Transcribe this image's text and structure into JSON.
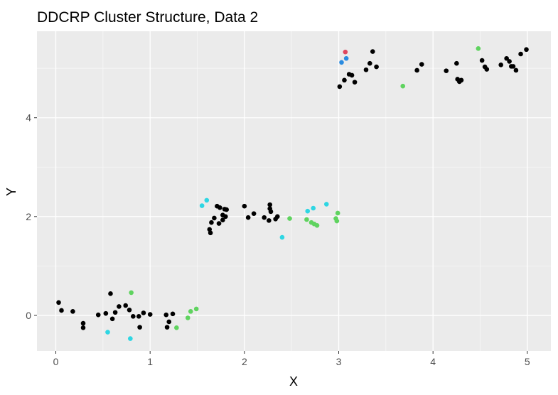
{
  "chart_data": {
    "type": "scatter",
    "title": "DDCRP Cluster Structure, Data 2",
    "xlabel": "X",
    "ylabel": "Y",
    "xlim": [
      -0.2,
      5.25
    ],
    "ylim": [
      -0.72,
      5.75
    ],
    "x_ticks": [
      0,
      1,
      2,
      3,
      4,
      5
    ],
    "y_ticks": [
      0,
      2,
      4
    ],
    "grid": true,
    "legend": "none",
    "panel_background": "#ebebeb",
    "cluster_colors": {
      "black": "#000000",
      "green": "#5fd35f",
      "cyan": "#2ed6e3",
      "blue": "#2a8be0",
      "red": "#e0475e"
    },
    "series": [
      {
        "color": "black",
        "points": [
          [
            0.03,
            0.26
          ],
          [
            0.06,
            0.1
          ],
          [
            0.18,
            0.08
          ],
          [
            0.29,
            -0.16
          ],
          [
            0.29,
            -0.25
          ],
          [
            0.45,
            0.01
          ],
          [
            0.53,
            0.04
          ],
          [
            0.58,
            0.44
          ],
          [
            0.6,
            -0.07
          ],
          [
            0.63,
            0.06
          ],
          [
            0.67,
            0.18
          ],
          [
            0.74,
            0.2
          ],
          [
            0.78,
            0.11
          ],
          [
            0.82,
            -0.02
          ],
          [
            0.88,
            -0.02
          ],
          [
            0.89,
            -0.24
          ],
          [
            0.93,
            0.05
          ],
          [
            1.0,
            0.02
          ],
          [
            1.17,
            0.01
          ],
          [
            1.18,
            -0.24
          ],
          [
            1.2,
            -0.13
          ],
          [
            1.24,
            0.03
          ],
          [
            1.63,
            1.74
          ],
          [
            1.64,
            1.67
          ],
          [
            1.65,
            1.88
          ],
          [
            1.68,
            1.97
          ],
          [
            1.71,
            2.21
          ],
          [
            1.73,
            1.86
          ],
          [
            1.74,
            2.18
          ],
          [
            1.77,
            1.93
          ],
          [
            1.77,
            2.03
          ],
          [
            1.79,
            2.15
          ],
          [
            1.8,
            2.0
          ],
          [
            1.81,
            2.14
          ],
          [
            2.0,
            2.21
          ],
          [
            2.04,
            1.98
          ],
          [
            2.1,
            2.06
          ],
          [
            2.21,
            1.98
          ],
          [
            2.26,
            1.92
          ],
          [
            2.27,
            2.24
          ],
          [
            2.27,
            2.16
          ],
          [
            2.28,
            2.1
          ],
          [
            2.33,
            1.95
          ],
          [
            2.35,
            2.0
          ],
          [
            3.01,
            4.63
          ],
          [
            3.06,
            4.76
          ],
          [
            3.11,
            4.88
          ],
          [
            3.14,
            4.86
          ],
          [
            3.17,
            4.72
          ],
          [
            3.29,
            4.97
          ],
          [
            3.33,
            5.1
          ],
          [
            3.36,
            5.34
          ],
          [
            3.4,
            5.03
          ],
          [
            3.83,
            4.96
          ],
          [
            3.88,
            5.08
          ],
          [
            4.14,
            4.95
          ],
          [
            4.25,
            5.1
          ],
          [
            4.26,
            4.78
          ],
          [
            4.28,
            4.73
          ],
          [
            4.3,
            4.76
          ],
          [
            4.52,
            5.16
          ],
          [
            4.55,
            5.03
          ],
          [
            4.57,
            4.98
          ],
          [
            4.72,
            5.07
          ],
          [
            4.78,
            5.2
          ],
          [
            4.81,
            5.14
          ],
          [
            4.83,
            5.04
          ],
          [
            4.85,
            5.04
          ],
          [
            4.88,
            4.96
          ],
          [
            4.93,
            5.29
          ],
          [
            4.99,
            5.38
          ]
        ]
      },
      {
        "color": "green",
        "points": [
          [
            0.8,
            0.46
          ],
          [
            1.28,
            -0.25
          ],
          [
            1.4,
            -0.05
          ],
          [
            1.43,
            0.08
          ],
          [
            1.49,
            0.13
          ],
          [
            2.48,
            1.96
          ],
          [
            2.66,
            1.94
          ],
          [
            2.71,
            1.88
          ],
          [
            2.74,
            1.85
          ],
          [
            2.77,
            1.82
          ],
          [
            2.97,
            1.96
          ],
          [
            2.98,
            1.91
          ],
          [
            2.99,
            2.07
          ],
          [
            3.68,
            4.64
          ],
          [
            4.48,
            5.4
          ]
        ]
      },
      {
        "color": "cyan",
        "points": [
          [
            0.55,
            -0.34
          ],
          [
            0.79,
            -0.47
          ],
          [
            1.55,
            2.22
          ],
          [
            1.6,
            2.33
          ],
          [
            2.4,
            1.58
          ],
          [
            2.67,
            2.11
          ],
          [
            2.73,
            2.17
          ],
          [
            2.87,
            2.25
          ]
        ]
      },
      {
        "color": "blue",
        "points": [
          [
            3.03,
            5.12
          ],
          [
            3.08,
            5.2
          ]
        ]
      },
      {
        "color": "red",
        "points": [
          [
            3.07,
            5.33
          ]
        ]
      }
    ]
  }
}
